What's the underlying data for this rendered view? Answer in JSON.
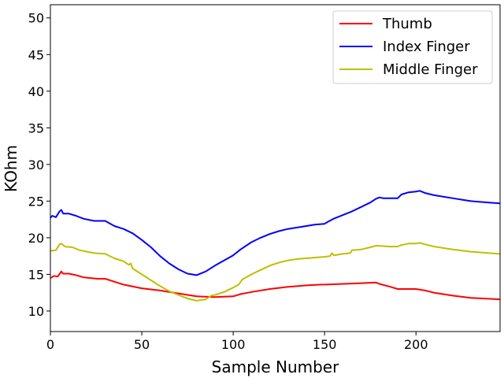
{
  "chart_data": {
    "type": "line",
    "title": "",
    "xlabel": "Sample Number",
    "ylabel": "KOhm",
    "xlim": [
      0,
      246
    ],
    "ylim": [
      7.2,
      51.8
    ],
    "xticks": [
      0,
      50,
      100,
      150,
      200
    ],
    "yticks": [
      10,
      15,
      20,
      25,
      30,
      35,
      40,
      45,
      50
    ],
    "grid": false,
    "legend_position": "top-right",
    "series": [
      {
        "name": "Thumb",
        "color": "#ff0000",
        "points": [
          [
            0,
            14.5
          ],
          [
            2,
            14.8
          ],
          [
            4,
            14.7
          ],
          [
            6,
            15.4
          ],
          [
            7,
            15.1
          ],
          [
            10,
            15.1
          ],
          [
            14,
            14.9
          ],
          [
            18,
            14.6
          ],
          [
            22,
            14.5
          ],
          [
            26,
            14.4
          ],
          [
            30,
            14.4
          ],
          [
            35,
            14.0
          ],
          [
            40,
            13.6
          ],
          [
            50,
            13.1
          ],
          [
            60,
            12.8
          ],
          [
            70,
            12.4
          ],
          [
            80,
            12.0
          ],
          [
            90,
            11.9
          ],
          [
            100,
            12.0
          ],
          [
            104,
            12.3
          ],
          [
            110,
            12.6
          ],
          [
            120,
            13.0
          ],
          [
            130,
            13.3
          ],
          [
            140,
            13.5
          ],
          [
            148,
            13.6
          ],
          [
            150,
            13.6
          ],
          [
            160,
            13.7
          ],
          [
            170,
            13.8
          ],
          [
            178,
            13.9
          ],
          [
            180,
            13.7
          ],
          [
            186,
            13.3
          ],
          [
            190,
            13.0
          ],
          [
            196,
            13.0
          ],
          [
            200,
            13.0
          ],
          [
            205,
            12.8
          ],
          [
            210,
            12.5
          ],
          [
            220,
            12.1
          ],
          [
            230,
            11.8
          ],
          [
            246,
            11.6
          ]
        ]
      },
      {
        "name": "Index Finger",
        "color": "#0000ff",
        "points": [
          [
            0,
            22.7
          ],
          [
            1,
            23.0
          ],
          [
            3,
            22.8
          ],
          [
            5,
            23.6
          ],
          [
            6,
            23.8
          ],
          [
            7,
            23.3
          ],
          [
            10,
            23.3
          ],
          [
            14,
            23.0
          ],
          [
            18,
            22.6
          ],
          [
            22,
            22.4
          ],
          [
            24,
            22.3
          ],
          [
            30,
            22.3
          ],
          [
            35,
            21.6
          ],
          [
            40,
            21.2
          ],
          [
            45,
            20.6
          ],
          [
            50,
            19.7
          ],
          [
            55,
            18.7
          ],
          [
            60,
            17.5
          ],
          [
            65,
            16.5
          ],
          [
            70,
            15.7
          ],
          [
            75,
            15.1
          ],
          [
            80,
            14.9
          ],
          [
            85,
            15.4
          ],
          [
            90,
            16.2
          ],
          [
            95,
            16.9
          ],
          [
            100,
            17.6
          ],
          [
            104,
            18.4
          ],
          [
            110,
            19.4
          ],
          [
            115,
            20.0
          ],
          [
            120,
            20.5
          ],
          [
            125,
            20.9
          ],
          [
            130,
            21.2
          ],
          [
            135,
            21.4
          ],
          [
            140,
            21.6
          ],
          [
            145,
            21.8
          ],
          [
            150,
            21.9
          ],
          [
            152,
            22.2
          ],
          [
            155,
            22.6
          ],
          [
            160,
            23.1
          ],
          [
            165,
            23.6
          ],
          [
            170,
            24.2
          ],
          [
            175,
            24.8
          ],
          [
            178,
            25.3
          ],
          [
            180,
            25.5
          ],
          [
            182,
            25.4
          ],
          [
            190,
            25.4
          ],
          [
            192,
            25.9
          ],
          [
            196,
            26.2
          ],
          [
            200,
            26.3
          ],
          [
            202,
            26.4
          ],
          [
            205,
            26.1
          ],
          [
            210,
            25.8
          ],
          [
            220,
            25.4
          ],
          [
            230,
            25.0
          ],
          [
            240,
            24.8
          ],
          [
            246,
            24.7
          ]
        ]
      },
      {
        "name": "Middle Finger",
        "color": "#bfbf00",
        "points": [
          [
            0,
            18.2
          ],
          [
            3,
            18.3
          ],
          [
            5,
            19.1
          ],
          [
            6,
            19.2
          ],
          [
            8,
            18.8
          ],
          [
            12,
            18.7
          ],
          [
            16,
            18.3
          ],
          [
            20,
            18.1
          ],
          [
            24,
            17.9
          ],
          [
            30,
            17.8
          ],
          [
            35,
            17.2
          ],
          [
            40,
            16.8
          ],
          [
            43,
            16.3
          ],
          [
            44,
            16.5
          ],
          [
            45,
            15.8
          ],
          [
            50,
            15.0
          ],
          [
            55,
            14.2
          ],
          [
            60,
            13.4
          ],
          [
            65,
            12.7
          ],
          [
            70,
            12.2
          ],
          [
            75,
            11.7
          ],
          [
            80,
            11.4
          ],
          [
            85,
            11.6
          ],
          [
            88,
            12.1
          ],
          [
            90,
            12.2
          ],
          [
            95,
            12.6
          ],
          [
            100,
            13.2
          ],
          [
            103,
            13.6
          ],
          [
            105,
            14.3
          ],
          [
            110,
            15.0
          ],
          [
            115,
            15.6
          ],
          [
            120,
            16.2
          ],
          [
            125,
            16.6
          ],
          [
            130,
            16.9
          ],
          [
            135,
            17.1
          ],
          [
            140,
            17.2
          ],
          [
            145,
            17.3
          ],
          [
            150,
            17.4
          ],
          [
            153,
            17.5
          ],
          [
            154,
            17.9
          ],
          [
            155,
            17.6
          ],
          [
            160,
            17.8
          ],
          [
            164,
            17.9
          ],
          [
            165,
            18.3
          ],
          [
            170,
            18.4
          ],
          [
            175,
            18.7
          ],
          [
            178,
            18.9
          ],
          [
            180,
            18.9
          ],
          [
            185,
            18.8
          ],
          [
            190,
            18.8
          ],
          [
            192,
            19.0
          ],
          [
            196,
            19.2
          ],
          [
            200,
            19.2
          ],
          [
            202,
            19.3
          ],
          [
            205,
            19.1
          ],
          [
            210,
            18.8
          ],
          [
            220,
            18.4
          ],
          [
            230,
            18.1
          ],
          [
            240,
            17.9
          ],
          [
            246,
            17.8
          ]
        ]
      }
    ]
  }
}
